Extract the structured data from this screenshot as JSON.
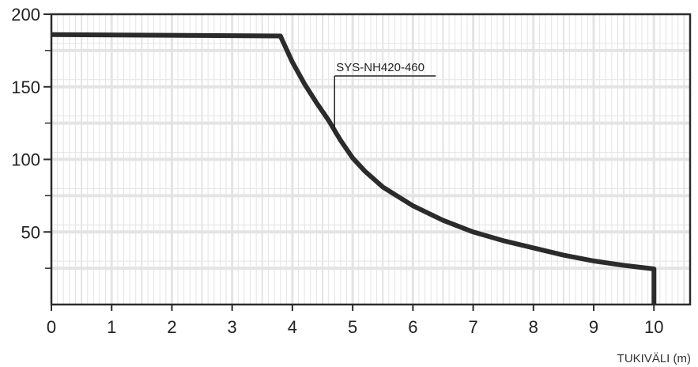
{
  "chart_data": {
    "type": "line",
    "title": "",
    "xlabel": "TUKIVÄLI (m)",
    "ylabel": "",
    "xlim": [
      0,
      10.6
    ],
    "ylim": [
      0,
      200
    ],
    "x_ticks": [
      0,
      1,
      2,
      3,
      4,
      5,
      6,
      7,
      8,
      9,
      10
    ],
    "x_tick_labels": [
      "0",
      "1",
      "2",
      "3",
      "4",
      "5",
      "6",
      "7",
      "8",
      "9",
      "10"
    ],
    "y_ticks": [
      50,
      100,
      150,
      200
    ],
    "y_tick_labels": [
      "50",
      "100",
      "150",
      "200"
    ],
    "y_minor_ticks": [
      25,
      75,
      125,
      175
    ],
    "grid": true,
    "grid_color": "#e4e4e4",
    "line_color": "#2b2b2b",
    "series": [
      {
        "name": "",
        "x": [
          0,
          3.8,
          4.0,
          4.2,
          4.4,
          4.6,
          4.8,
          5.0,
          5.2,
          5.5,
          6.0,
          6.5,
          7.0,
          7.5,
          8.0,
          8.5,
          9.0,
          9.5,
          10.0,
          10.0
        ],
        "y": [
          186,
          185,
          167,
          152,
          139,
          127,
          113,
          101,
          92,
          81,
          68,
          58,
          50,
          44,
          39,
          34,
          30,
          27,
          24.5,
          0
        ]
      }
    ],
    "annotation": {
      "text": "SYS-NH420-460",
      "x": 4.7,
      "y": 117
    }
  }
}
